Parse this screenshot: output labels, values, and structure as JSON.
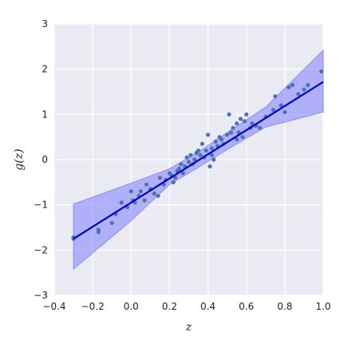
{
  "chart_data": {
    "type": "scatter",
    "title": "",
    "xlabel": "z",
    "ylabel": "g(z)",
    "xlim": [
      -0.4,
      1.0
    ],
    "ylim": [
      -3,
      3
    ],
    "x_ticks": [
      -0.4,
      -0.2,
      0.0,
      0.2,
      0.4,
      0.6,
      0.8,
      1.0
    ],
    "x_tick_labels": [
      "−0.4",
      "−0.2",
      "0.0",
      "0.2",
      "0.4",
      "0.6",
      "0.8",
      "1.0"
    ],
    "y_ticks": [
      -3,
      -2,
      -1,
      0,
      1,
      2,
      3
    ],
    "y_tick_labels": [
      "−3",
      "−2",
      "−1",
      "0",
      "1",
      "2",
      "3"
    ],
    "grid": true,
    "legend": "none",
    "colors": {
      "plot_background": "#eaeaf2",
      "grid": "#ffffff",
      "points": "#4c72b0",
      "fit_line": "#0000cc",
      "confidence_band": "#8080ff"
    },
    "points": {
      "x": [
        -0.3,
        -0.3,
        -0.17,
        -0.17,
        -0.1,
        -0.08,
        -0.05,
        -0.02,
        0.0,
        0.01,
        0.02,
        0.04,
        0.05,
        0.07,
        0.08,
        0.1,
        0.12,
        0.14,
        0.15,
        0.17,
        0.18,
        0.2,
        0.21,
        0.22,
        0.23,
        0.24,
        0.25,
        0.26,
        0.27,
        0.28,
        0.29,
        0.3,
        0.31,
        0.32,
        0.33,
        0.34,
        0.35,
        0.36,
        0.37,
        0.38,
        0.39,
        0.4,
        0.41,
        0.42,
        0.42,
        0.43,
        0.44,
        0.45,
        0.46,
        0.47,
        0.48,
        0.5,
        0.51,
        0.52,
        0.53,
        0.55,
        0.55,
        0.56,
        0.57,
        0.58,
        0.59,
        0.6,
        0.62,
        0.63,
        0.65,
        0.67,
        0.7,
        0.74,
        0.75,
        0.78,
        0.8,
        0.82,
        0.84,
        0.87,
        0.9,
        0.92,
        0.99
      ],
      "y": [
        -1.75,
        -1.72,
        -1.55,
        -1.6,
        -1.4,
        -1.2,
        -0.95,
        -1.05,
        -0.7,
        -0.9,
        -0.95,
        -0.8,
        -0.7,
        -0.9,
        -0.55,
        -0.65,
        -0.75,
        -0.8,
        -0.4,
        -0.55,
        -0.45,
        -0.3,
        -0.35,
        -0.5,
        -0.4,
        -0.25,
        -0.2,
        -0.1,
        -0.3,
        -0.15,
        0.05,
        -0.05,
        0.1,
        -0.1,
        0.0,
        0.15,
        0.2,
        0.1,
        0.35,
        0.05,
        0.2,
        0.55,
        -0.15,
        0.1,
        0.25,
        0.0,
        0.4,
        0.3,
        0.5,
        0.45,
        0.35,
        0.55,
        1.0,
        0.6,
        0.7,
        0.45,
        0.8,
        0.6,
        0.9,
        0.5,
        0.85,
        1.0,
        0.7,
        0.8,
        0.75,
        0.7,
        0.95,
        1.1,
        1.4,
        1.2,
        1.05,
        1.6,
        1.65,
        1.45,
        1.55,
        1.65,
        1.95
      ]
    },
    "fit": {
      "x": [
        -0.3,
        1.0
      ],
      "y": [
        -1.75,
        1.72
      ]
    },
    "confidence_band": {
      "x": [
        -0.3,
        0.0,
        0.2,
        0.35,
        0.5,
        0.7,
        1.0
      ],
      "lower": [
        -2.42,
        -1.35,
        -0.55,
        -0.17,
        0.22,
        0.72,
        1.05
      ],
      "upper": [
        -0.98,
        -0.52,
        -0.2,
        0.17,
        0.6,
        1.16,
        2.42
      ]
    }
  }
}
